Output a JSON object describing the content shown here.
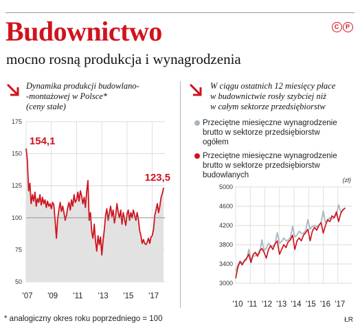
{
  "header": {
    "title": "Budownictwo",
    "subtitle": "mocno rosną produkcja i wynagrodzenia",
    "copyright": "©℗"
  },
  "left_panel": {
    "heading_lines": [
      "Dynamika produkcji budowlano-",
      "-montażowej w Polsce*",
      "(ceny stałe)"
    ]
  },
  "right_panel": {
    "heading_lines": [
      "W ciągu ostatnich 12 miesięcy płace",
      "w budownictwie rosły szybciej niż",
      "w całym sektorze przedsiębiorstw"
    ],
    "legend": [
      {
        "lines": [
          "Przeciętne miesięczne wynagrodzenie",
          "brutto w sektorze przedsiębiorstw",
          "ogółem"
        ],
        "color": "#a9b6bf"
      },
      {
        "lines": [
          "Przeciętne miesięczne wynagrodzenie",
          "brutto w sektorze przedsiębiorstw",
          "budowlanych"
        ],
        "color": "#d0131d"
      }
    ]
  },
  "footnote": "* analogiczny okres roku poprzedniego = 100",
  "credit": "ŁR",
  "colors": {
    "red": "#d0131d",
    "gray": "#a9b6bf",
    "area": "#e2e2e2"
  },
  "chart_data": [
    {
      "type": "area",
      "title": "Dynamika produkcji budowlano-montażowej w Polsce*",
      "ylim": [
        50,
        175
      ],
      "yticks": [
        50,
        75,
        100,
        125,
        150,
        175
      ],
      "xlim": [
        2007,
        2018
      ],
      "xticks": [
        {
          "value": 2007,
          "label": "'07"
        },
        {
          "value": 2009,
          "label": "'09"
        },
        {
          "value": 2011,
          "label": "'11"
        },
        {
          "value": 2013,
          "label": "'13"
        },
        {
          "value": 2015,
          "label": "'15"
        },
        {
          "value": 2017,
          "label": "'17"
        }
      ],
      "annotations": [
        {
          "x": 2007.05,
          "y": 154.1,
          "label": "154,1"
        },
        {
          "x": 2017.9,
          "y": 123.5,
          "label": "123,5"
        }
      ],
      "series": [
        {
          "x": [
            2007.0,
            2007.1,
            2007.2,
            2007.3,
            2007.4,
            2007.5,
            2007.6,
            2007.7,
            2007.8,
            2007.9,
            2008.0,
            2008.1,
            2008.2,
            2008.3,
            2008.4,
            2008.5,
            2008.6,
            2008.7,
            2008.8,
            2008.9,
            2009.0,
            2009.1,
            2009.2,
            2009.3,
            2009.4,
            2009.5,
            2009.6,
            2009.7,
            2009.8,
            2009.9,
            2010.0,
            2010.1,
            2010.2,
            2010.3,
            2010.4,
            2010.5,
            2010.6,
            2010.7,
            2010.8,
            2010.9,
            2011.0,
            2011.1,
            2011.2,
            2011.3,
            2011.4,
            2011.5,
            2011.6,
            2011.7,
            2011.8,
            2011.9,
            2012.0,
            2012.1,
            2012.2,
            2012.3,
            2012.4,
            2012.5,
            2012.6,
            2012.7,
            2012.8,
            2012.9,
            2013.0,
            2013.1,
            2013.2,
            2013.3,
            2013.4,
            2013.5,
            2013.6,
            2013.7,
            2013.8,
            2013.9,
            2014.0,
            2014.1,
            2014.2,
            2014.3,
            2014.4,
            2014.5,
            2014.6,
            2014.7,
            2014.8,
            2014.9,
            2015.0,
            2015.1,
            2015.2,
            2015.3,
            2015.4,
            2015.5,
            2015.6,
            2015.7,
            2015.8,
            2015.9,
            2016.0,
            2016.1,
            2016.2,
            2016.3,
            2016.4,
            2016.5,
            2016.6,
            2016.7,
            2016.8,
            2016.9,
            2017.0,
            2017.1,
            2017.2,
            2017.3,
            2017.4,
            2017.5,
            2017.6,
            2017.7,
            2017.8,
            2017.9
          ],
          "values": [
            154.1,
            145,
            121,
            127,
            111,
            118,
            113,
            120,
            109,
            115,
            112,
            118,
            110,
            116,
            111,
            114,
            108,
            113,
            109,
            111,
            107,
            112,
            110,
            98,
            84,
            99,
            106,
            112,
            105,
            109,
            104,
            98,
            102,
            108,
            112,
            106,
            114,
            109,
            118,
            112,
            114,
            120,
            113,
            121,
            117,
            111,
            116,
            108,
            120,
            129,
            98,
            104,
            89,
            84,
            95,
            82,
            74,
            86,
            79,
            85,
            71,
            82,
            91,
            102,
            107,
            98,
            104,
            109,
            101,
            106,
            96,
            102,
            111,
            104,
            100,
            106,
            95,
            104,
            99,
            94,
            103,
            106,
            98,
            104,
            100,
            106,
            102,
            98,
            104,
            99,
            90,
            86,
            80,
            83,
            80,
            79,
            81,
            84,
            80,
            85,
            86,
            91,
            102,
            106,
            111,
            104,
            109,
            116,
            119,
            123.5
          ]
        }
      ]
    },
    {
      "type": "line",
      "unit": "(zł)",
      "ylim": [
        3000,
        5000
      ],
      "yticks": [
        3000,
        3400,
        3800,
        4200,
        4600,
        5000
      ],
      "xlim": [
        2010,
        2018
      ],
      "xticks": [
        {
          "value": 2010,
          "label": "'10"
        },
        {
          "value": 2011,
          "label": "'11"
        },
        {
          "value": 2012,
          "label": "'12"
        },
        {
          "value": 2013,
          "label": "'13"
        },
        {
          "value": 2014,
          "label": "'14"
        },
        {
          "value": 2015,
          "label": "'15"
        },
        {
          "value": 2016,
          "label": "'16"
        },
        {
          "value": 2017,
          "label": "'17"
        }
      ],
      "series": [
        {
          "name": "Przeciętne miesięczne wynagrodzenie brutto w sektorze przedsiębiorstw ogółem",
          "x": [
            2010.0,
            2010.15,
            2010.3,
            2010.45,
            2010.6,
            2010.75,
            2010.9,
            2011.05,
            2011.2,
            2011.35,
            2011.5,
            2011.65,
            2011.8,
            2011.95,
            2012.1,
            2012.25,
            2012.4,
            2012.55,
            2012.7,
            2012.85,
            2013.0,
            2013.15,
            2013.3,
            2013.45,
            2013.6,
            2013.75,
            2013.9,
            2014.05,
            2014.2,
            2014.35,
            2014.5,
            2014.65,
            2014.8,
            2014.95,
            2015.1,
            2015.25,
            2015.4,
            2015.55,
            2015.7,
            2015.85,
            2016.0,
            2016.15,
            2016.3,
            2016.45,
            2016.6,
            2016.75,
            2016.9,
            2017.05,
            2017.2,
            2017.35,
            2017.5
          ],
          "values": [
            3250,
            3380,
            3460,
            3420,
            3450,
            3480,
            3700,
            3500,
            3560,
            3570,
            3610,
            3620,
            3900,
            3680,
            3720,
            3830,
            3760,
            3770,
            3820,
            4050,
            3830,
            3870,
            3940,
            3880,
            3900,
            3950,
            4180,
            3960,
            4000,
            4080,
            4030,
            4040,
            4100,
            4320,
            4120,
            4180,
            4200,
            4170,
            4200,
            4260,
            4500,
            4260,
            4320,
            4360,
            4330,
            4360,
            4420,
            4630,
            4480,
            4520,
            4570
          ]
        },
        {
          "name": "Przeciętne miesięczne wynagrodzenie brutto w sektorze przedsiębiorstw budowlanych",
          "x": [
            2010.0,
            2010.15,
            2010.3,
            2010.45,
            2010.6,
            2010.75,
            2010.9,
            2011.05,
            2011.2,
            2011.35,
            2011.5,
            2011.65,
            2011.8,
            2011.95,
            2012.1,
            2012.25,
            2012.4,
            2012.55,
            2012.7,
            2012.85,
            2013.0,
            2013.15,
            2013.3,
            2013.45,
            2013.6,
            2013.75,
            2013.9,
            2014.05,
            2014.2,
            2014.35,
            2014.5,
            2014.65,
            2014.8,
            2014.95,
            2015.1,
            2015.25,
            2015.4,
            2015.55,
            2015.7,
            2015.85,
            2016.0,
            2016.15,
            2016.3,
            2016.45,
            2016.6,
            2016.75,
            2016.9,
            2017.05,
            2017.2,
            2017.35,
            2017.5
          ],
          "values": [
            3100,
            3330,
            3450,
            3380,
            3470,
            3520,
            3600,
            3430,
            3600,
            3640,
            3560,
            3680,
            3720,
            3640,
            3520,
            3700,
            3780,
            3700,
            3820,
            3880,
            3600,
            3700,
            3800,
            3740,
            3860,
            3900,
            4000,
            3700,
            3880,
            3940,
            3880,
            4000,
            4050,
            4120,
            3880,
            4080,
            4160,
            4100,
            4200,
            4260,
            4040,
            4200,
            4320,
            4280,
            4400,
            4360,
            4480,
            4280,
            4450,
            4530,
            4560
          ]
        }
      ]
    }
  ]
}
